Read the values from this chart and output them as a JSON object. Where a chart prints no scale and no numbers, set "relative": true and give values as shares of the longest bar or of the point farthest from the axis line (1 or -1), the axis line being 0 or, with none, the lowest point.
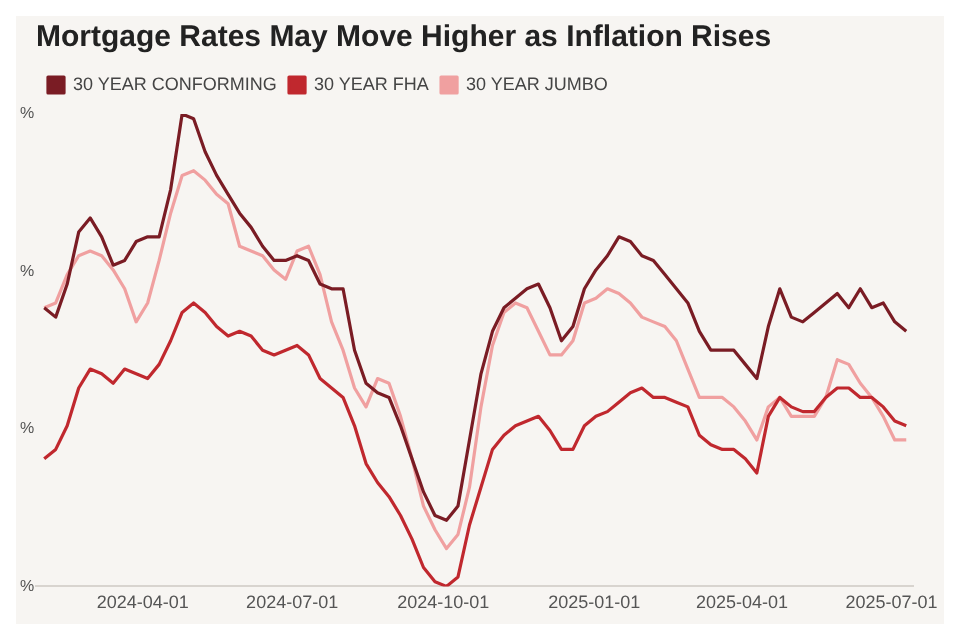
{
  "chart_data": {
    "type": "line",
    "title": "Mortgage Rates May Move Higher as Inflation Rises",
    "relative": true,
    "legend": "top left",
    "grid": false,
    "marker": "none",
    "line_style": "solid",
    "x": [
      "2024-02-01",
      "2024-02-08",
      "2024-02-15",
      "2024-02-22",
      "2024-02-29",
      "2024-03-07",
      "2024-03-14",
      "2024-03-21",
      "2024-03-28",
      "2024-04-04",
      "2024-04-11",
      "2024-04-18",
      "2024-04-25",
      "2024-05-02",
      "2024-05-09",
      "2024-05-16",
      "2024-05-23",
      "2024-05-30",
      "2024-06-06",
      "2024-06-13",
      "2024-06-20",
      "2024-06-27",
      "2024-07-04",
      "2024-07-11",
      "2024-07-18",
      "2024-07-25",
      "2024-08-01",
      "2024-08-08",
      "2024-08-15",
      "2024-08-22",
      "2024-08-29",
      "2024-09-05",
      "2024-09-12",
      "2024-09-19",
      "2024-09-26",
      "2024-10-03",
      "2024-10-10",
      "2024-10-17",
      "2024-10-24",
      "2024-10-31",
      "2024-11-07",
      "2024-11-14",
      "2024-11-21",
      "2024-11-28",
      "2024-12-05",
      "2024-12-12",
      "2024-12-19",
      "2024-12-26",
      "2025-01-02",
      "2025-01-09",
      "2025-01-16",
      "2025-01-23",
      "2025-01-30",
      "2025-02-06",
      "2025-02-13",
      "2025-02-20",
      "2025-02-27",
      "2025-03-06",
      "2025-03-13",
      "2025-03-20",
      "2025-03-27",
      "2025-04-03",
      "2025-04-10",
      "2025-04-17",
      "2025-04-24",
      "2025-05-01",
      "2025-05-08",
      "2025-05-15",
      "2025-05-22",
      "2025-05-29",
      "2025-06-05",
      "2025-06-12",
      "2025-06-19",
      "2025-06-26",
      "2025-07-03",
      "2025-07-10"
    ],
    "xlim": [
      "2024-01-27",
      "2025-07-14"
    ],
    "xticks": [
      "2024-04-01",
      "2024-07-01",
      "2024-10-01",
      "2025-01-01",
      "2025-04-01",
      "2025-07-01"
    ],
    "series": [
      {
        "name": "30 YEAR CONFORMING",
        "color": "#7a1c24",
        "values": [
          0.59,
          0.57,
          0.64,
          0.75,
          0.78,
          0.74,
          0.68,
          0.69,
          0.73,
          0.74,
          0.74,
          0.84,
          1.0,
          0.99,
          0.92,
          0.87,
          0.83,
          0.79,
          0.76,
          0.72,
          0.69,
          0.69,
          0.7,
          0.69,
          0.64,
          0.63,
          0.63,
          0.5,
          0.43,
          0.41,
          0.4,
          0.34,
          0.27,
          0.2,
          0.15,
          0.14,
          0.17,
          0.31,
          0.45,
          0.54,
          0.59,
          0.61,
          0.63,
          0.64,
          0.59,
          0.52,
          0.55,
          0.63,
          0.67,
          0.7,
          0.74,
          0.73,
          0.7,
          0.69,
          0.66,
          0.63,
          0.6,
          0.54,
          0.5,
          0.5,
          0.5,
          0.47,
          0.44,
          0.55,
          0.63,
          0.57,
          0.56,
          0.58,
          0.6,
          0.62,
          0.59,
          0.63,
          0.59,
          0.6,
          0.56,
          0.54
        ]
      },
      {
        "name": "30 YEAR FHA",
        "color": "#c0282e",
        "values": [
          0.27,
          0.29,
          0.34,
          0.42,
          0.46,
          0.45,
          0.43,
          0.46,
          0.45,
          0.44,
          0.47,
          0.52,
          0.58,
          0.6,
          0.58,
          0.55,
          0.53,
          0.54,
          0.53,
          0.5,
          0.49,
          0.5,
          0.51,
          0.49,
          0.44,
          0.42,
          0.4,
          0.34,
          0.26,
          0.22,
          0.19,
          0.15,
          0.1,
          0.04,
          0.01,
          0.0,
          0.02,
          0.13,
          0.21,
          0.29,
          0.32,
          0.34,
          0.35,
          0.36,
          0.33,
          0.29,
          0.29,
          0.34,
          0.36,
          0.37,
          0.39,
          0.41,
          0.42,
          0.4,
          0.4,
          0.39,
          0.38,
          0.32,
          0.3,
          0.29,
          0.29,
          0.27,
          0.24,
          0.36,
          0.4,
          0.38,
          0.37,
          0.37,
          0.4,
          0.42,
          0.42,
          0.4,
          0.4,
          0.38,
          0.35,
          0.34
        ]
      },
      {
        "name": "30 YEAR JUMBO",
        "color": "#f0a0a0",
        "values": [
          0.59,
          0.6,
          0.66,
          0.7,
          0.71,
          0.7,
          0.67,
          0.63,
          0.56,
          0.6,
          0.69,
          0.79,
          0.87,
          0.88,
          0.86,
          0.83,
          0.81,
          0.72,
          0.71,
          0.7,
          0.67,
          0.65,
          0.71,
          0.72,
          0.66,
          0.56,
          0.5,
          0.42,
          0.38,
          0.44,
          0.43,
          0.36,
          0.27,
          0.17,
          0.12,
          0.08,
          0.11,
          0.21,
          0.38,
          0.51,
          0.58,
          0.6,
          0.59,
          0.54,
          0.49,
          0.49,
          0.52,
          0.6,
          0.61,
          0.63,
          0.62,
          0.6,
          0.57,
          0.56,
          0.55,
          0.52,
          0.46,
          0.4,
          0.4,
          0.4,
          0.38,
          0.35,
          0.31,
          0.38,
          0.4,
          0.36,
          0.36,
          0.36,
          0.4,
          0.48,
          0.47,
          0.43,
          0.4,
          0.36,
          0.31,
          0.31
        ]
      }
    ],
    "annotations": [
      "%",
      "%",
      "%",
      "%"
    ]
  }
}
